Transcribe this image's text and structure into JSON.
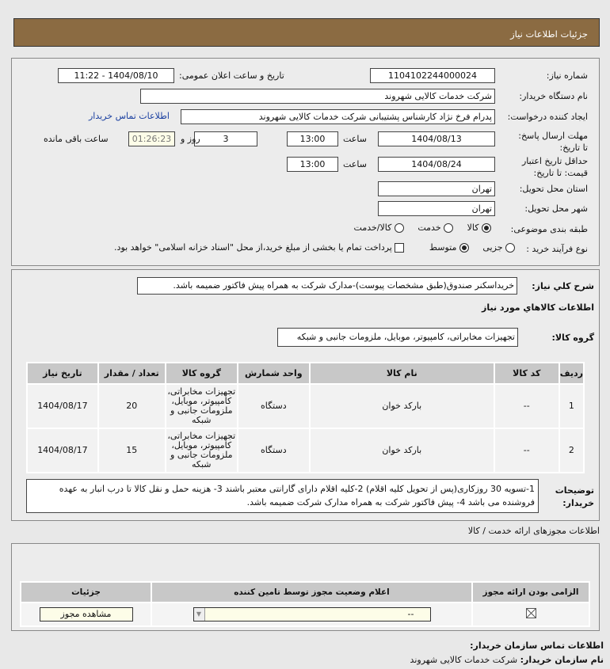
{
  "header": {
    "title": "جزئیات اطلاعات نیاز"
  },
  "form": {
    "need_number_label": "شماره نیاز:",
    "need_number": "1104102244000024",
    "announce_label": "تاریخ و ساعت اعلان عمومی:",
    "announce_value": "1404/08/10 - 11:22",
    "buyer_label": "نام دستگاه خریدار:",
    "buyer_value": "شرکت خدمات کالایی شهروند",
    "creator_label": "ایجاد کننده درخواست:",
    "creator_value": "پدرام فرخ نژاد کارشناس پشتیبانی شرکت خدمات کالایی شهروند",
    "contact_link": "اطلاعات تماس خریدار",
    "deadline_label": "مهلت ارسال پاسخ: تا تاریخ:",
    "deadline_date": "1404/08/13",
    "time_label": "ساعت",
    "deadline_time": "13:00",
    "days": "3",
    "days_label": "روز و",
    "remaining": "01:26:23",
    "remaining_label": "ساعت باقی مانده",
    "validity_label": "حداقل تاریخ اعتبار قیمت: تا تاریخ:",
    "validity_date": "1404/08/24",
    "validity_time": "13:00",
    "province_label": "استان محل تحویل:",
    "province": "تهران",
    "city_label": "شهر محل تحویل:",
    "city": "تهران",
    "category_label": "طبقه بندی موضوعی:",
    "category_options": [
      "کالا",
      "خدمت",
      "کالا/خدمت"
    ],
    "category_selected": "کالا",
    "process_label": "نوع فرآیند خرید :",
    "process_options": [
      "جزیی",
      "متوسط"
    ],
    "process_selected": "متوسط",
    "payment_note": "پرداخت تمام یا بخشی از مبلغ خرید،از محل \"اسناد خزانه اسلامی\" خواهد بود."
  },
  "details": {
    "desc_label": "شرح کلي نياز:",
    "desc_value": "خریداسکنر صندوق(طبق مشخصات پیوست)-مدارک شرکت به همراه پیش فاکتور ضمیمه باشد.",
    "goods_title": "اطلاعات کالاهاي مورد نياز",
    "group_label": "گروه کالا:",
    "group_value": "تجهیزات مخابراتی، کامپیوتر، موبایل، ملزومات جانبی و شبکه",
    "columns": [
      "رديف",
      "کد کالا",
      "نام کالا",
      "واحد شمارش",
      "گروه کالا",
      "تعداد / مقدار",
      "تاریخ نیاز"
    ],
    "rows": [
      {
        "no": "1",
        "code": "--",
        "name": "بارکد خوان",
        "unit": "دستگاه",
        "group": "تجهیزات مخابراتی، کامپیوتر، موبایل، ملزومات جانبی و شبکه",
        "qty": "20",
        "date": "1404/08/17"
      },
      {
        "no": "2",
        "code": "--",
        "name": "بارکد خوان",
        "unit": "دستگاه",
        "group": "تجهیزات مخابراتی، کامپیوتر، موبایل، ملزومات جانبی و شبکه",
        "qty": "15",
        "date": "1404/08/17"
      }
    ],
    "notes_label": "توضیحات خریدار:",
    "notes_value": "1-تسویه 30 روزکاری(پس از تحویل کلیه اقلام) 2-کلیه اقلام دارای گارانتی معتبر باشند 3- هزینه حمل و نقل کالا تا درب انبار به عهده فروشنده می باشد 4- پیش فاکتور شرکت به همراه مدارک شرکت ضمیمه باشد."
  },
  "licenses": {
    "title": "اطلاعات مجوزهای ارائه خدمت / کالا",
    "columns": [
      "الزامی بودن ارائه مجوز",
      "اعلام وضعیت مجوز توسط تامین کننده",
      "جزئیات"
    ],
    "status_value": "--",
    "view_button": "مشاهده مجوز"
  },
  "footer": {
    "title": "اطلاعات تماس سازمان خریدار:",
    "org_label": "نام سازمان خریدار:",
    "org_value": "شرکت خدمات کالایی شهروند"
  }
}
